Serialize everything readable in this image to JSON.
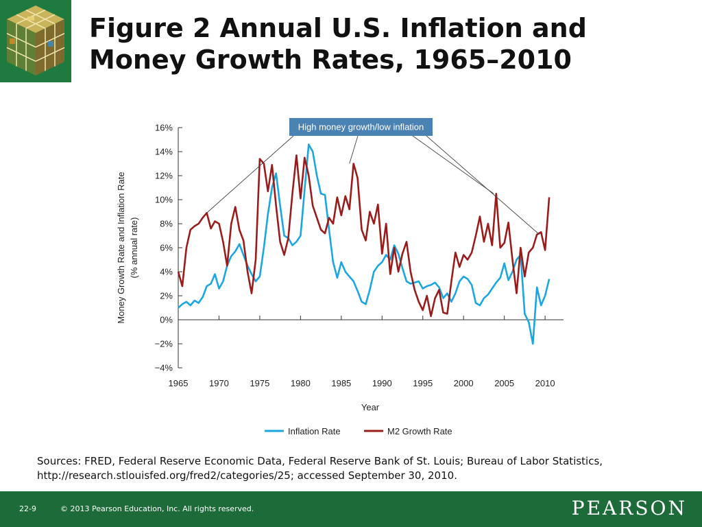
{
  "slide": {
    "title": "Figure 2  Annual U.S. Inflation and\nMoney Growth Rates, 1965–2010",
    "sources": "Sources: FRED, Federal Reserve Economic Data, Federal Reserve Bank of St. Louis; Bureau of Labor Statistics, http://research.stlouisfed.org/fred2/categories/25; accessed September 30, 2010.",
    "page_number": "22-9",
    "copyright": "© 2013 Pearson Education, Inc. All rights reserved.",
    "brand": "PEARSON"
  },
  "chart_data": {
    "type": "line",
    "xlabel": "Year",
    "ylabel_lines": [
      "Money Growth Rate and Inflation Rate",
      "(% annual rate)"
    ],
    "xlim": [
      1965,
      2011
    ],
    "ylim": [
      -4,
      16
    ],
    "xticks": [
      1965,
      1970,
      1975,
      1980,
      1985,
      1990,
      1995,
      2000,
      2005,
      2010
    ],
    "yticks": [
      {
        "value": 16,
        "label": "16%"
      },
      {
        "value": 14,
        "label": "14%"
      },
      {
        "value": 12,
        "label": "12%"
      },
      {
        "value": 10,
        "label": "10%"
      },
      {
        "value": 8,
        "label": "8%"
      },
      {
        "value": 6,
        "label": "6%"
      },
      {
        "value": 4,
        "label": "4%"
      },
      {
        "value": 2,
        "label": "2%"
      },
      {
        "value": 0,
        "label": "0%"
      },
      {
        "value": -2,
        "label": "−2%"
      },
      {
        "value": -4,
        "label": "−4%"
      }
    ],
    "annotation": {
      "text": "High money growth/low inflation",
      "points": [
        [
          1968.5,
          8.9
        ],
        [
          1986.0,
          13.0
        ],
        [
          2003.7,
          10.5
        ],
        [
          2009.3,
          7.1
        ]
      ]
    },
    "legend_position": "bottom",
    "series": [
      {
        "name": "Inflation Rate",
        "color": "#1aa6e0",
        "x": [
          1965.0,
          1965.5,
          1966.0,
          1966.5,
          1967.0,
          1967.5,
          1968.0,
          1968.5,
          1969.0,
          1969.5,
          1970.0,
          1970.5,
          1971.0,
          1971.5,
          1972.0,
          1972.5,
          1973.0,
          1973.5,
          1974.0,
          1974.5,
          1975.0,
          1975.5,
          1976.0,
          1976.5,
          1977.0,
          1977.5,
          1978.0,
          1978.5,
          1979.0,
          1979.5,
          1980.0,
          1980.5,
          1981.0,
          1981.5,
          1982.0,
          1982.5,
          1983.0,
          1983.5,
          1984.0,
          1984.5,
          1985.0,
          1985.5,
          1986.0,
          1986.5,
          1987.0,
          1987.5,
          1988.0,
          1988.5,
          1989.0,
          1989.5,
          1990.0,
          1990.5,
          1991.0,
          1991.5,
          1992.0,
          1992.5,
          1993.0,
          1993.5,
          1994.0,
          1994.5,
          1995.0,
          1995.5,
          1996.0,
          1996.5,
          1997.0,
          1997.5,
          1998.0,
          1998.5,
          1999.0,
          1999.5,
          2000.0,
          2000.5,
          2001.0,
          2001.5,
          2002.0,
          2002.5,
          2003.0,
          2003.5,
          2004.0,
          2004.5,
          2005.0,
          2005.5,
          2006.0,
          2006.5,
          2007.0,
          2007.5,
          2008.0,
          2008.5,
          2009.0,
          2009.5,
          2010.0,
          2010.5
        ],
        "values": [
          1.0,
          1.3,
          1.5,
          1.2,
          1.6,
          1.4,
          1.9,
          2.8,
          3.0,
          3.8,
          2.6,
          3.2,
          4.5,
          5.3,
          5.7,
          6.3,
          5.4,
          4.5,
          3.8,
          3.2,
          3.6,
          6.0,
          8.8,
          11.0,
          12.2,
          9.5,
          7.0,
          6.8,
          6.2,
          6.5,
          7.0,
          10.8,
          14.6,
          14.0,
          12.0,
          10.5,
          10.4,
          7.5,
          4.8,
          3.5,
          4.8,
          4.0,
          3.6,
          3.2,
          2.4,
          1.5,
          1.3,
          2.5,
          4.0,
          4.5,
          4.8,
          5.4,
          5.0,
          6.2,
          5.5,
          4.3,
          3.2,
          3.0,
          3.1,
          3.2,
          2.6,
          2.8,
          2.9,
          3.1,
          2.7,
          1.8,
          2.2,
          1.5,
          2.2,
          3.2,
          3.6,
          3.4,
          2.9,
          1.4,
          1.2,
          1.8,
          2.1,
          2.6,
          3.1,
          3.5,
          4.7,
          3.3,
          4.0,
          5.0,
          5.4,
          0.5,
          -0.2,
          -2.0,
          2.7,
          1.2,
          2.0,
          3.4
        ]
      },
      {
        "name": "M2 Growth Rate",
        "color": "#9b1b1b",
        "x": [
          1965.0,
          1965.5,
          1966.0,
          1966.5,
          1967.0,
          1967.5,
          1968.0,
          1968.5,
          1969.0,
          1969.5,
          1970.0,
          1970.5,
          1971.0,
          1971.5,
          1972.0,
          1972.5,
          1973.0,
          1973.5,
          1974.0,
          1974.5,
          1975.0,
          1975.5,
          1976.0,
          1976.5,
          1977.0,
          1977.5,
          1978.0,
          1978.5,
          1979.0,
          1979.5,
          1980.0,
          1980.5,
          1981.0,
          1981.5,
          1982.0,
          1982.5,
          1983.0,
          1983.5,
          1984.0,
          1984.5,
          1985.0,
          1985.5,
          1986.0,
          1986.5,
          1987.0,
          1987.5,
          1988.0,
          1988.5,
          1989.0,
          1989.5,
          1990.0,
          1990.5,
          1991.0,
          1991.5,
          1992.0,
          1992.5,
          1993.0,
          1993.5,
          1994.0,
          1994.5,
          1995.0,
          1995.5,
          1996.0,
          1996.5,
          1997.0,
          1997.5,
          1998.0,
          1998.5,
          1999.0,
          1999.5,
          2000.0,
          2000.5,
          2001.0,
          2001.5,
          2002.0,
          2002.5,
          2003.0,
          2003.5,
          2004.0,
          2004.5,
          2005.0,
          2005.5,
          2006.0,
          2006.5,
          2007.0,
          2007.5,
          2008.0,
          2008.5,
          2009.0,
          2009.5,
          2010.0,
          2010.5
        ],
        "values": [
          4.0,
          2.8,
          6.0,
          7.5,
          7.8,
          8.0,
          8.5,
          8.9,
          7.6,
          8.2,
          8.0,
          6.5,
          4.5,
          8.0,
          9.4,
          7.5,
          6.6,
          4.0,
          2.2,
          5.0,
          13.4,
          13.0,
          10.7,
          12.9,
          9.5,
          6.5,
          5.4,
          6.8,
          10.5,
          13.7,
          10.1,
          13.5,
          12.0,
          9.5,
          8.5,
          7.5,
          7.2,
          8.5,
          8.0,
          10.2,
          8.7,
          10.3,
          9.2,
          13.0,
          11.8,
          7.5,
          6.6,
          9.0,
          8.0,
          9.6,
          5.5,
          8.0,
          3.8,
          6.0,
          4.0,
          5.5,
          6.5,
          4.0,
          2.5,
          1.5,
          0.8,
          2.0,
          0.3,
          1.8,
          2.5,
          0.6,
          0.5,
          3.2,
          5.6,
          4.4,
          5.4,
          5.0,
          5.6,
          7.0,
          8.6,
          6.5,
          8.0,
          6.2,
          10.5,
          6.0,
          6.4,
          8.1,
          5.0,
          2.2,
          6.0,
          3.6,
          5.6,
          6.0,
          7.1,
          7.3,
          5.8,
          10.2
        ]
      }
    ]
  }
}
